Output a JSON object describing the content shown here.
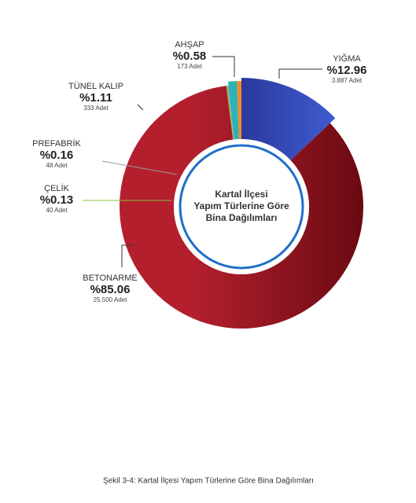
{
  "chart_data": {
    "type": "donut",
    "title": "Kartal İlçesi Yapım Türlerine Göre Bina Dağılımları",
    "caption": "Şekil 3-4: Kartal İlçesi Yapım Türlerine Göre Bina Dağılımları",
    "categories": [
      "YIĞMA",
      "BETONARME",
      "ÇELİK",
      "PREFABRİK",
      "TÜNEL KALIP",
      "AHŞAP"
    ],
    "values": [
      12.96,
      85.06,
      0.13,
      0.16,
      1.11,
      0.58
    ],
    "value_labels": [
      "%12.96",
      "%85.06",
      "%0.13",
      "%0.16",
      "%1.11",
      "%0.58"
    ],
    "count_labels": [
      "3.887 Adet",
      "25.500 Adet",
      "40 Adet",
      "48 Adet",
      "333 Adet",
      "173 Adet"
    ],
    "colors": [
      "#2a3a9c",
      "#b41f2e",
      "#8dc63f",
      "#9a9a9a",
      "#2bb3b8",
      "#f28c28"
    ]
  }
}
